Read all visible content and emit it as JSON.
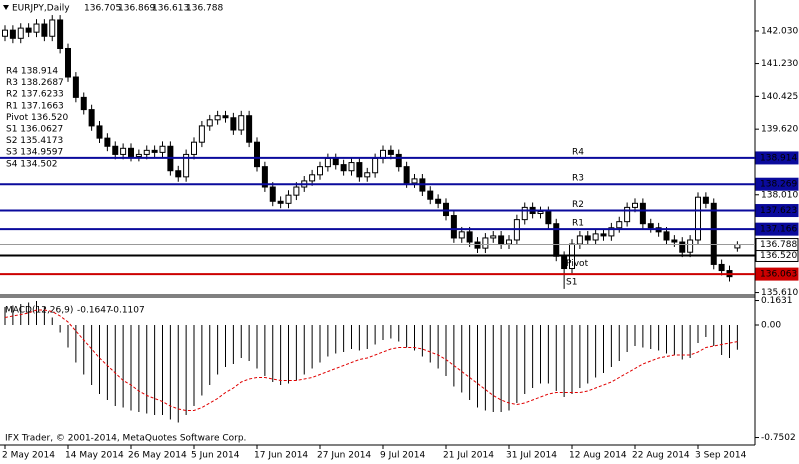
{
  "chart_data": [
    {
      "type": "candlestick",
      "title": "EURJPY,Daily",
      "categories": [
        "2 May 2014",
        null,
        null,
        null,
        null,
        null,
        null,
        null,
        "14 May 2014",
        null,
        null,
        null,
        null,
        null,
        null,
        null,
        "26 May 2014",
        null,
        null,
        null,
        null,
        null,
        null,
        null,
        "5 Jun 2014",
        null,
        null,
        null,
        null,
        null,
        null,
        null,
        "17 Jun 2014",
        null,
        null,
        null,
        null,
        null,
        null,
        null,
        "27 Jun 2014",
        null,
        null,
        null,
        null,
        null,
        null,
        null,
        "9 Jul 2014",
        null,
        null,
        null,
        null,
        null,
        null,
        null,
        "21 Jul 2014",
        null,
        null,
        null,
        null,
        null,
        null,
        null,
        "31 Jul 2014",
        null,
        null,
        null,
        null,
        null,
        null,
        null,
        "12 Aug 2014",
        null,
        null,
        null,
        null,
        null,
        null,
        null,
        "22 Aug 2014",
        null,
        null,
        null,
        null,
        null,
        null,
        null,
        "3 Sep 2014",
        null,
        null,
        null,
        null,
        null
      ],
      "open": [
        141.9,
        142.05,
        141.85,
        142.1,
        142.0,
        142.2,
        141.9,
        142.3,
        141.6,
        140.9,
        140.4,
        140.1,
        139.7,
        139.4,
        139.2,
        139.0,
        139.15,
        138.95,
        139.0,
        139.1,
        139.05,
        139.2,
        138.6,
        138.45,
        139.0,
        139.3,
        139.7,
        139.85,
        139.95,
        139.9,
        139.6,
        139.95,
        139.3,
        138.7,
        138.2,
        137.85,
        137.8,
        138.0,
        138.2,
        138.35,
        138.5,
        138.7,
        138.9,
        138.75,
        138.6,
        138.8,
        138.45,
        138.55,
        138.9,
        139.1,
        139.0,
        138.7,
        138.3,
        138.4,
        138.1,
        137.9,
        137.8,
        137.5,
        136.95,
        137.1,
        136.85,
        136.7,
        136.95,
        137.0,
        136.8,
        136.9,
        137.4,
        137.7,
        137.55,
        137.6,
        137.3,
        136.5,
        136.2,
        136.8,
        137.0,
        136.9,
        137.05,
        137.0,
        137.2,
        137.35,
        137.7,
        137.8,
        137.3,
        137.2,
        137.1,
        136.9,
        136.85,
        136.6,
        136.9,
        137.95,
        137.8,
        136.3,
        136.15,
        136.705
      ],
      "high": [
        142.17,
        142.17,
        142.22,
        142.22,
        142.32,
        142.32,
        142.42,
        142.42,
        141.72,
        141.02,
        140.52,
        140.22,
        139.82,
        139.52,
        139.32,
        139.27,
        139.27,
        139.12,
        139.22,
        139.22,
        139.32,
        139.32,
        138.72,
        139.12,
        139.42,
        139.82,
        139.97,
        140.07,
        140.07,
        140.02,
        140.07,
        140.07,
        139.42,
        138.82,
        138.32,
        137.97,
        138.12,
        138.32,
        138.47,
        138.62,
        138.82,
        139.02,
        139.02,
        138.87,
        138.92,
        138.92,
        138.67,
        139.02,
        139.22,
        139.22,
        139.12,
        138.82,
        138.52,
        138.52,
        138.22,
        138.02,
        137.92,
        137.62,
        137.22,
        137.22,
        136.97,
        137.07,
        137.12,
        137.12,
        137.02,
        137.52,
        137.82,
        137.82,
        137.72,
        137.72,
        137.42,
        136.62,
        136.92,
        137.12,
        137.12,
        137.17,
        137.17,
        137.32,
        137.47,
        137.82,
        137.92,
        137.92,
        137.42,
        137.32,
        137.22,
        137.02,
        136.97,
        137.02,
        138.07,
        138.07,
        137.92,
        136.42,
        136.27,
        136.869
      ],
      "low": [
        141.78,
        141.73,
        141.73,
        141.88,
        141.88,
        141.78,
        141.78,
        141.48,
        140.78,
        140.28,
        139.98,
        139.58,
        139.28,
        139.08,
        138.88,
        138.88,
        138.83,
        138.83,
        138.88,
        138.93,
        138.93,
        138.48,
        138.33,
        138.33,
        138.88,
        139.18,
        139.58,
        139.73,
        139.78,
        139.48,
        139.48,
        139.18,
        138.58,
        138.08,
        137.73,
        137.68,
        137.68,
        137.88,
        138.08,
        138.23,
        138.38,
        138.58,
        138.63,
        138.48,
        138.48,
        138.33,
        138.33,
        138.43,
        138.78,
        138.88,
        138.58,
        138.18,
        138.18,
        137.98,
        137.78,
        137.68,
        137.38,
        136.83,
        136.83,
        136.73,
        136.58,
        136.58,
        136.83,
        136.68,
        136.68,
        136.78,
        137.28,
        137.43,
        137.43,
        137.18,
        136.38,
        135.7,
        136.08,
        136.68,
        136.78,
        136.78,
        136.88,
        136.88,
        137.08,
        137.23,
        137.58,
        137.18,
        137.08,
        136.98,
        136.78,
        136.73,
        136.48,
        136.48,
        136.78,
        137.68,
        136.18,
        136.03,
        135.88,
        136.613
      ],
      "close": [
        142.05,
        141.85,
        142.1,
        142.0,
        142.2,
        141.9,
        142.3,
        141.6,
        140.9,
        140.4,
        140.1,
        139.7,
        139.4,
        139.2,
        139.0,
        139.15,
        138.95,
        139.0,
        139.1,
        139.05,
        139.2,
        138.6,
        138.45,
        139.0,
        139.3,
        139.7,
        139.85,
        139.95,
        139.9,
        139.6,
        139.95,
        139.3,
        138.7,
        138.2,
        137.85,
        137.8,
        138.0,
        138.2,
        138.35,
        138.5,
        138.7,
        138.9,
        138.75,
        138.6,
        138.8,
        138.45,
        138.55,
        138.9,
        139.1,
        139.0,
        138.7,
        138.3,
        138.4,
        138.1,
        137.9,
        137.8,
        137.5,
        136.95,
        137.1,
        136.85,
        136.7,
        136.95,
        137.0,
        136.8,
        136.9,
        137.4,
        137.7,
        137.55,
        137.6,
        137.3,
        136.5,
        136.2,
        136.8,
        137.0,
        136.9,
        137.05,
        137.0,
        137.2,
        137.35,
        137.7,
        137.8,
        137.3,
        137.2,
        137.1,
        136.9,
        136.85,
        136.6,
        136.9,
        137.95,
        137.8,
        136.3,
        136.15,
        136.0,
        136.788
      ],
      "ylim": [
        135.55,
        142.79
      ],
      "yticks": [
        {
          "value": 142.03,
          "label": "142.030"
        },
        {
          "value": 141.23,
          "label": "141.230"
        },
        140.425,
        {
          "value": 139.62,
          "label": "139.620"
        },
        {
          "value": 138.01,
          "label": "138.010"
        },
        {
          "value": 135.61,
          "label": "135.610"
        }
      ],
      "levels": [
        {
          "name": "R4",
          "value": 138.914,
          "label": "138.914",
          "color": "#0a0a9c"
        },
        {
          "name": "R3",
          "value": 138.269,
          "label": "138.269",
          "color": "#0a0a9c"
        },
        {
          "name": "R2",
          "value": 137.623,
          "label": "137.623",
          "color": "#0a0a9c"
        },
        {
          "name": "R1",
          "value": 137.166,
          "label": "137.166",
          "color": "#0a0a9c"
        },
        {
          "name": "Pivot",
          "value": 136.52,
          "label": "136.520",
          "color": "#000000"
        },
        {
          "name": "S1",
          "value": 136.063,
          "label": "136.063",
          "color": "#cc0000"
        }
      ],
      "pivot_notes": [
        "R4 138.914",
        "R3 138.2687",
        "R2 137.6233",
        "R1 137.1663",
        "Pivot 136.520",
        "S1 136.0627",
        "S2 135.4173",
        "S3 134.9597",
        "S4 134.502"
      ],
      "footer": "IFX Trader, © 2001-2014, MetaQuotes Software Corp."
    },
    {
      "type": "macd",
      "title": "MACD(12,26,9)",
      "series": [
        {
          "name": "MACD",
          "color": "#000000",
          "values": [
            0.12,
            0.13,
            0.14,
            0.15,
            0.16,
            0.12,
            0.05,
            -0.05,
            -0.15,
            -0.25,
            -0.33,
            -0.4,
            -0.46,
            -0.5,
            -0.54,
            -0.55,
            -0.57,
            -0.58,
            -0.59,
            -0.6,
            -0.6,
            -0.63,
            -0.65,
            -0.6,
            -0.54,
            -0.47,
            -0.4,
            -0.33,
            -0.28,
            -0.26,
            -0.22,
            -0.24,
            -0.29,
            -0.34,
            -0.38,
            -0.4,
            -0.39,
            -0.37,
            -0.33,
            -0.29,
            -0.25,
            -0.21,
            -0.19,
            -0.18,
            -0.16,
            -0.17,
            -0.16,
            -0.13,
            -0.1,
            -0.09,
            -0.11,
            -0.15,
            -0.17,
            -0.21,
            -0.25,
            -0.29,
            -0.34,
            -0.41,
            -0.45,
            -0.5,
            -0.55,
            -0.57,
            -0.58,
            -0.58,
            -0.57,
            -0.52,
            -0.46,
            -0.42,
            -0.39,
            -0.39,
            -0.44,
            -0.48,
            -0.46,
            -0.42,
            -0.39,
            -0.35,
            -0.32,
            -0.28,
            -0.24,
            -0.18,
            -0.14,
            -0.15,
            -0.16,
            -0.17,
            -0.19,
            -0.2,
            -0.23,
            -0.22,
            -0.12,
            -0.08,
            -0.14,
            -0.2,
            -0.22,
            -0.1647
          ]
        },
        {
          "name": "Signal",
          "color": "#e00000",
          "values": [
            0.05,
            0.06,
            0.07,
            0.08,
            0.1,
            0.1,
            0.09,
            0.06,
            0.02,
            -0.04,
            -0.1,
            -0.16,
            -0.22,
            -0.27,
            -0.32,
            -0.37,
            -0.4,
            -0.44,
            -0.47,
            -0.49,
            -0.51,
            -0.54,
            -0.56,
            -0.57,
            -0.57,
            -0.55,
            -0.52,
            -0.49,
            -0.45,
            -0.42,
            -0.38,
            -0.36,
            -0.35,
            -0.35,
            -0.36,
            -0.37,
            -0.37,
            -0.37,
            -0.36,
            -0.35,
            -0.33,
            -0.31,
            -0.29,
            -0.27,
            -0.25,
            -0.23,
            -0.22,
            -0.2,
            -0.18,
            -0.16,
            -0.15,
            -0.15,
            -0.15,
            -0.16,
            -0.18,
            -0.2,
            -0.23,
            -0.27,
            -0.31,
            -0.35,
            -0.39,
            -0.43,
            -0.47,
            -0.5,
            -0.52,
            -0.53,
            -0.52,
            -0.5,
            -0.48,
            -0.46,
            -0.45,
            -0.45,
            -0.45,
            -0.45,
            -0.44,
            -0.42,
            -0.4,
            -0.38,
            -0.35,
            -0.32,
            -0.29,
            -0.26,
            -0.24,
            -0.22,
            -0.21,
            -0.2,
            -0.2,
            -0.2,
            -0.18,
            -0.15,
            -0.14,
            -0.13,
            -0.12,
            -0.1107
          ]
        }
      ],
      "ylim": [
        -0.8,
        0.18
      ],
      "yticks": [
        0.1631,
        {
          "value": 0,
          "label": "0.00"
        },
        -0.7502
      ]
    }
  ]
}
